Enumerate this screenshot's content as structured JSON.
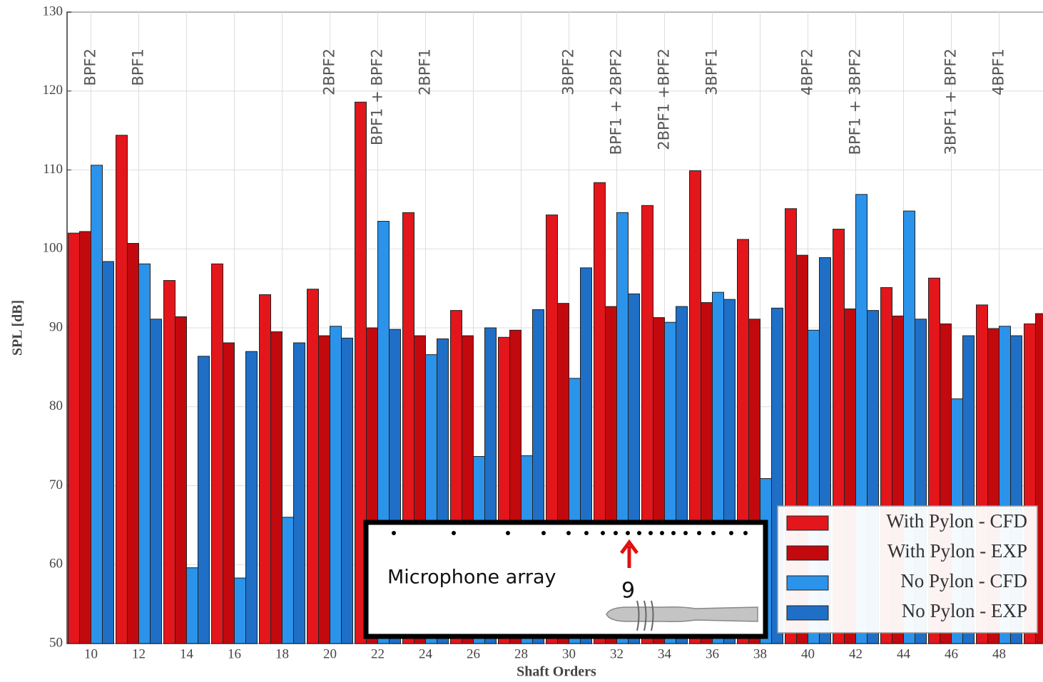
{
  "chart_data": {
    "type": "bar",
    "x_label": "Shaft Orders",
    "y_label": "SPL [dB]",
    "categories": [
      "10",
      "12",
      "14",
      "16",
      "18",
      "20",
      "22",
      "24",
      "26",
      "28",
      "30",
      "32",
      "34",
      "36",
      "38",
      "40",
      "42",
      "44",
      "46",
      "48",
      null
    ],
    "series": [
      {
        "name": "With Pylon - CFD",
        "color": "#e3161b",
        "values": [
          102.0,
          114.4,
          96.0,
          98.1,
          94.2,
          94.9,
          118.6,
          104.6,
          92.2,
          88.8,
          104.3,
          108.4,
          105.5,
          109.9,
          101.2,
          105.1,
          102.5,
          95.1,
          96.3,
          92.9,
          90.5
        ]
      },
      {
        "name": "With Pylon - EXP",
        "color": "#c2090e",
        "values": [
          102.2,
          100.7,
          91.4,
          88.1,
          89.5,
          89.0,
          90.0,
          89.0,
          89.0,
          89.7,
          93.1,
          92.7,
          91.3,
          93.2,
          91.1,
          99.2,
          92.4,
          91.5,
          90.5,
          89.9,
          91.8
        ]
      },
      {
        "name": "No Pylon - CFD",
        "color": "#2b93ea",
        "values": [
          110.6,
          98.1,
          59.6,
          58.3,
          66.0,
          90.2,
          103.5,
          86.6,
          73.7,
          73.8,
          83.6,
          104.6,
          90.7,
          94.5,
          70.9,
          89.7,
          106.9,
          104.8,
          81.0,
          90.2,
          null
        ]
      },
      {
        "name": "No Pylon - EXP",
        "color": "#1f6fc6",
        "values": [
          98.4,
          91.1,
          86.4,
          87.0,
          88.1,
          88.7,
          89.8,
          88.6,
          90.0,
          92.3,
          97.6,
          94.3,
          92.7,
          93.6,
          92.5,
          98.9,
          92.2,
          91.1,
          89.0,
          89.0,
          null
        ]
      }
    ],
    "ylim": [
      50,
      130
    ],
    "yticks": [
      50,
      60,
      70,
      80,
      90,
      100,
      110,
      120,
      130
    ],
    "grid": true,
    "annotations": [
      "BPF2",
      "BPF1",
      "2BPF2",
      "BPF1 + BPF2",
      "2BPF1",
      "3BPF2",
      "BPF1 + 2BPF2",
      "2BPF1 +BPF2",
      "3BPF1",
      "4BPF2",
      "BPF1 + 3BPF2",
      "3BPF1 + BPF2",
      "4BPF1"
    ],
    "inset_label": "Microphone array",
    "inset_marker": "9",
    "legend": "lower right"
  }
}
